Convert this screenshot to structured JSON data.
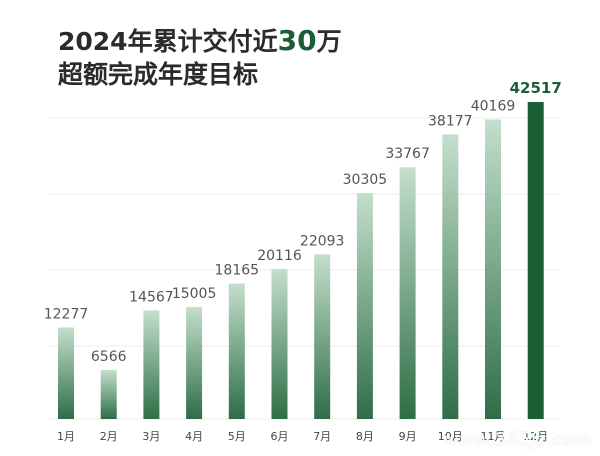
{
  "title": {
    "line1_prefix": "2024年累计交付近",
    "line1_highlight": "30",
    "line1_suffix": "万",
    "line2": "超额完成年度目标"
  },
  "colors": {
    "bar_top": "#c4dfcd",
    "bar_bottom": "#2e6e45",
    "highlight_bar": "#1b5e35",
    "highlight_text": "#1b5e35",
    "value_text": "#555555",
    "axis_text": "#444444"
  },
  "watermark": "www.365jz.com",
  "chart_data": {
    "type": "bar",
    "title": "",
    "categories": [
      "1月",
      "2月",
      "3月",
      "4月",
      "5月",
      "6月",
      "7月",
      "8月",
      "9月",
      "10月",
      "11月",
      "12月"
    ],
    "values": [
      12277,
      6566,
      14567,
      15005,
      18165,
      20116,
      22093,
      30305,
      33767,
      38177,
      40169,
      42517
    ],
    "highlight_index": 11,
    "ylim": [
      0,
      42517
    ],
    "grid": true,
    "show_value_labels": true
  }
}
